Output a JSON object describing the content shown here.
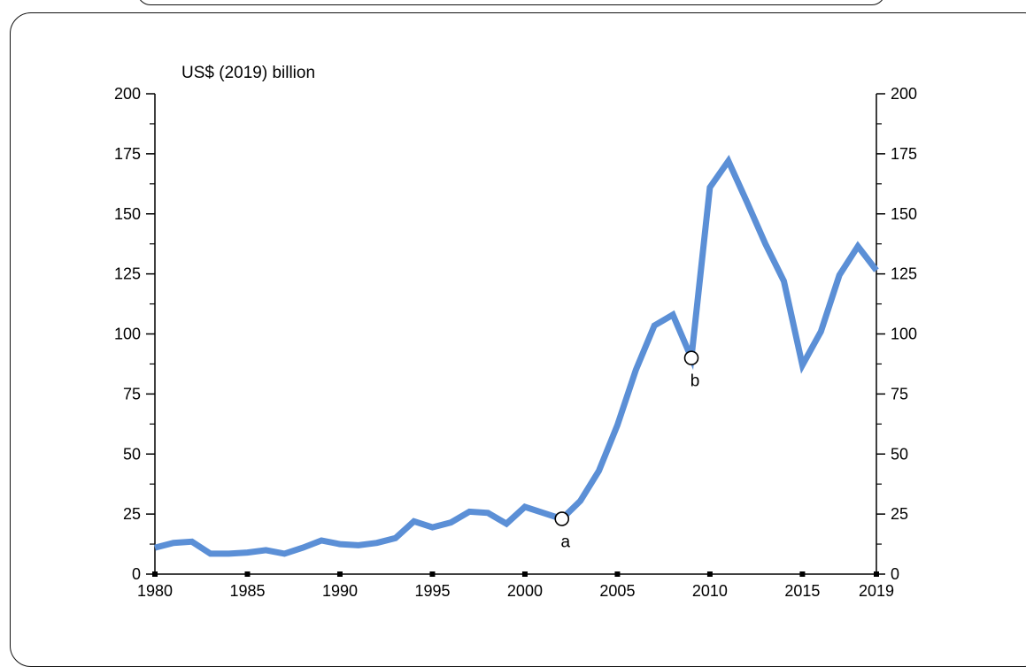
{
  "chart_data": {
    "type": "line",
    "ylabel": "US$ (2019) billion",
    "xlim": [
      1980,
      2019
    ],
    "ylim": [
      0,
      200
    ],
    "x_ticks": [
      "1980",
      "1985",
      "1990",
      "1995",
      "2000",
      "2005",
      "2010",
      "2015",
      "2019"
    ],
    "y_ticks": [
      "0",
      "25",
      "50",
      "75",
      "100",
      "125",
      "150",
      "175",
      "200"
    ],
    "series_color": "#5b8fd6",
    "x": [
      1980,
      1981,
      1982,
      1983,
      1984,
      1985,
      1986,
      1987,
      1988,
      1989,
      1990,
      1991,
      1992,
      1993,
      1994,
      1995,
      1996,
      1997,
      1998,
      1999,
      2000,
      2001,
      2002,
      2003,
      2004,
      2005,
      2006,
      2007,
      2008,
      2009,
      2010,
      2011,
      2012,
      2013,
      2014,
      2015,
      2016,
      2017,
      2018,
      2019
    ],
    "values": [
      11,
      13,
      13.5,
      8.5,
      8.5,
      9,
      10,
      8.5,
      11,
      14,
      12.5,
      12,
      13,
      15,
      22,
      19.5,
      21.5,
      26,
      25.5,
      21,
      28,
      25.5,
      23,
      30.5,
      43,
      62,
      85,
      103.5,
      108,
      90,
      161,
      172,
      155,
      137.5,
      122,
      87,
      101,
      124.5,
      136.5,
      126.5
    ],
    "annotations": [
      {
        "label": "a",
        "x": 2002,
        "y": 23
      },
      {
        "label": "b",
        "x": 2009,
        "y": 90
      }
    ]
  }
}
